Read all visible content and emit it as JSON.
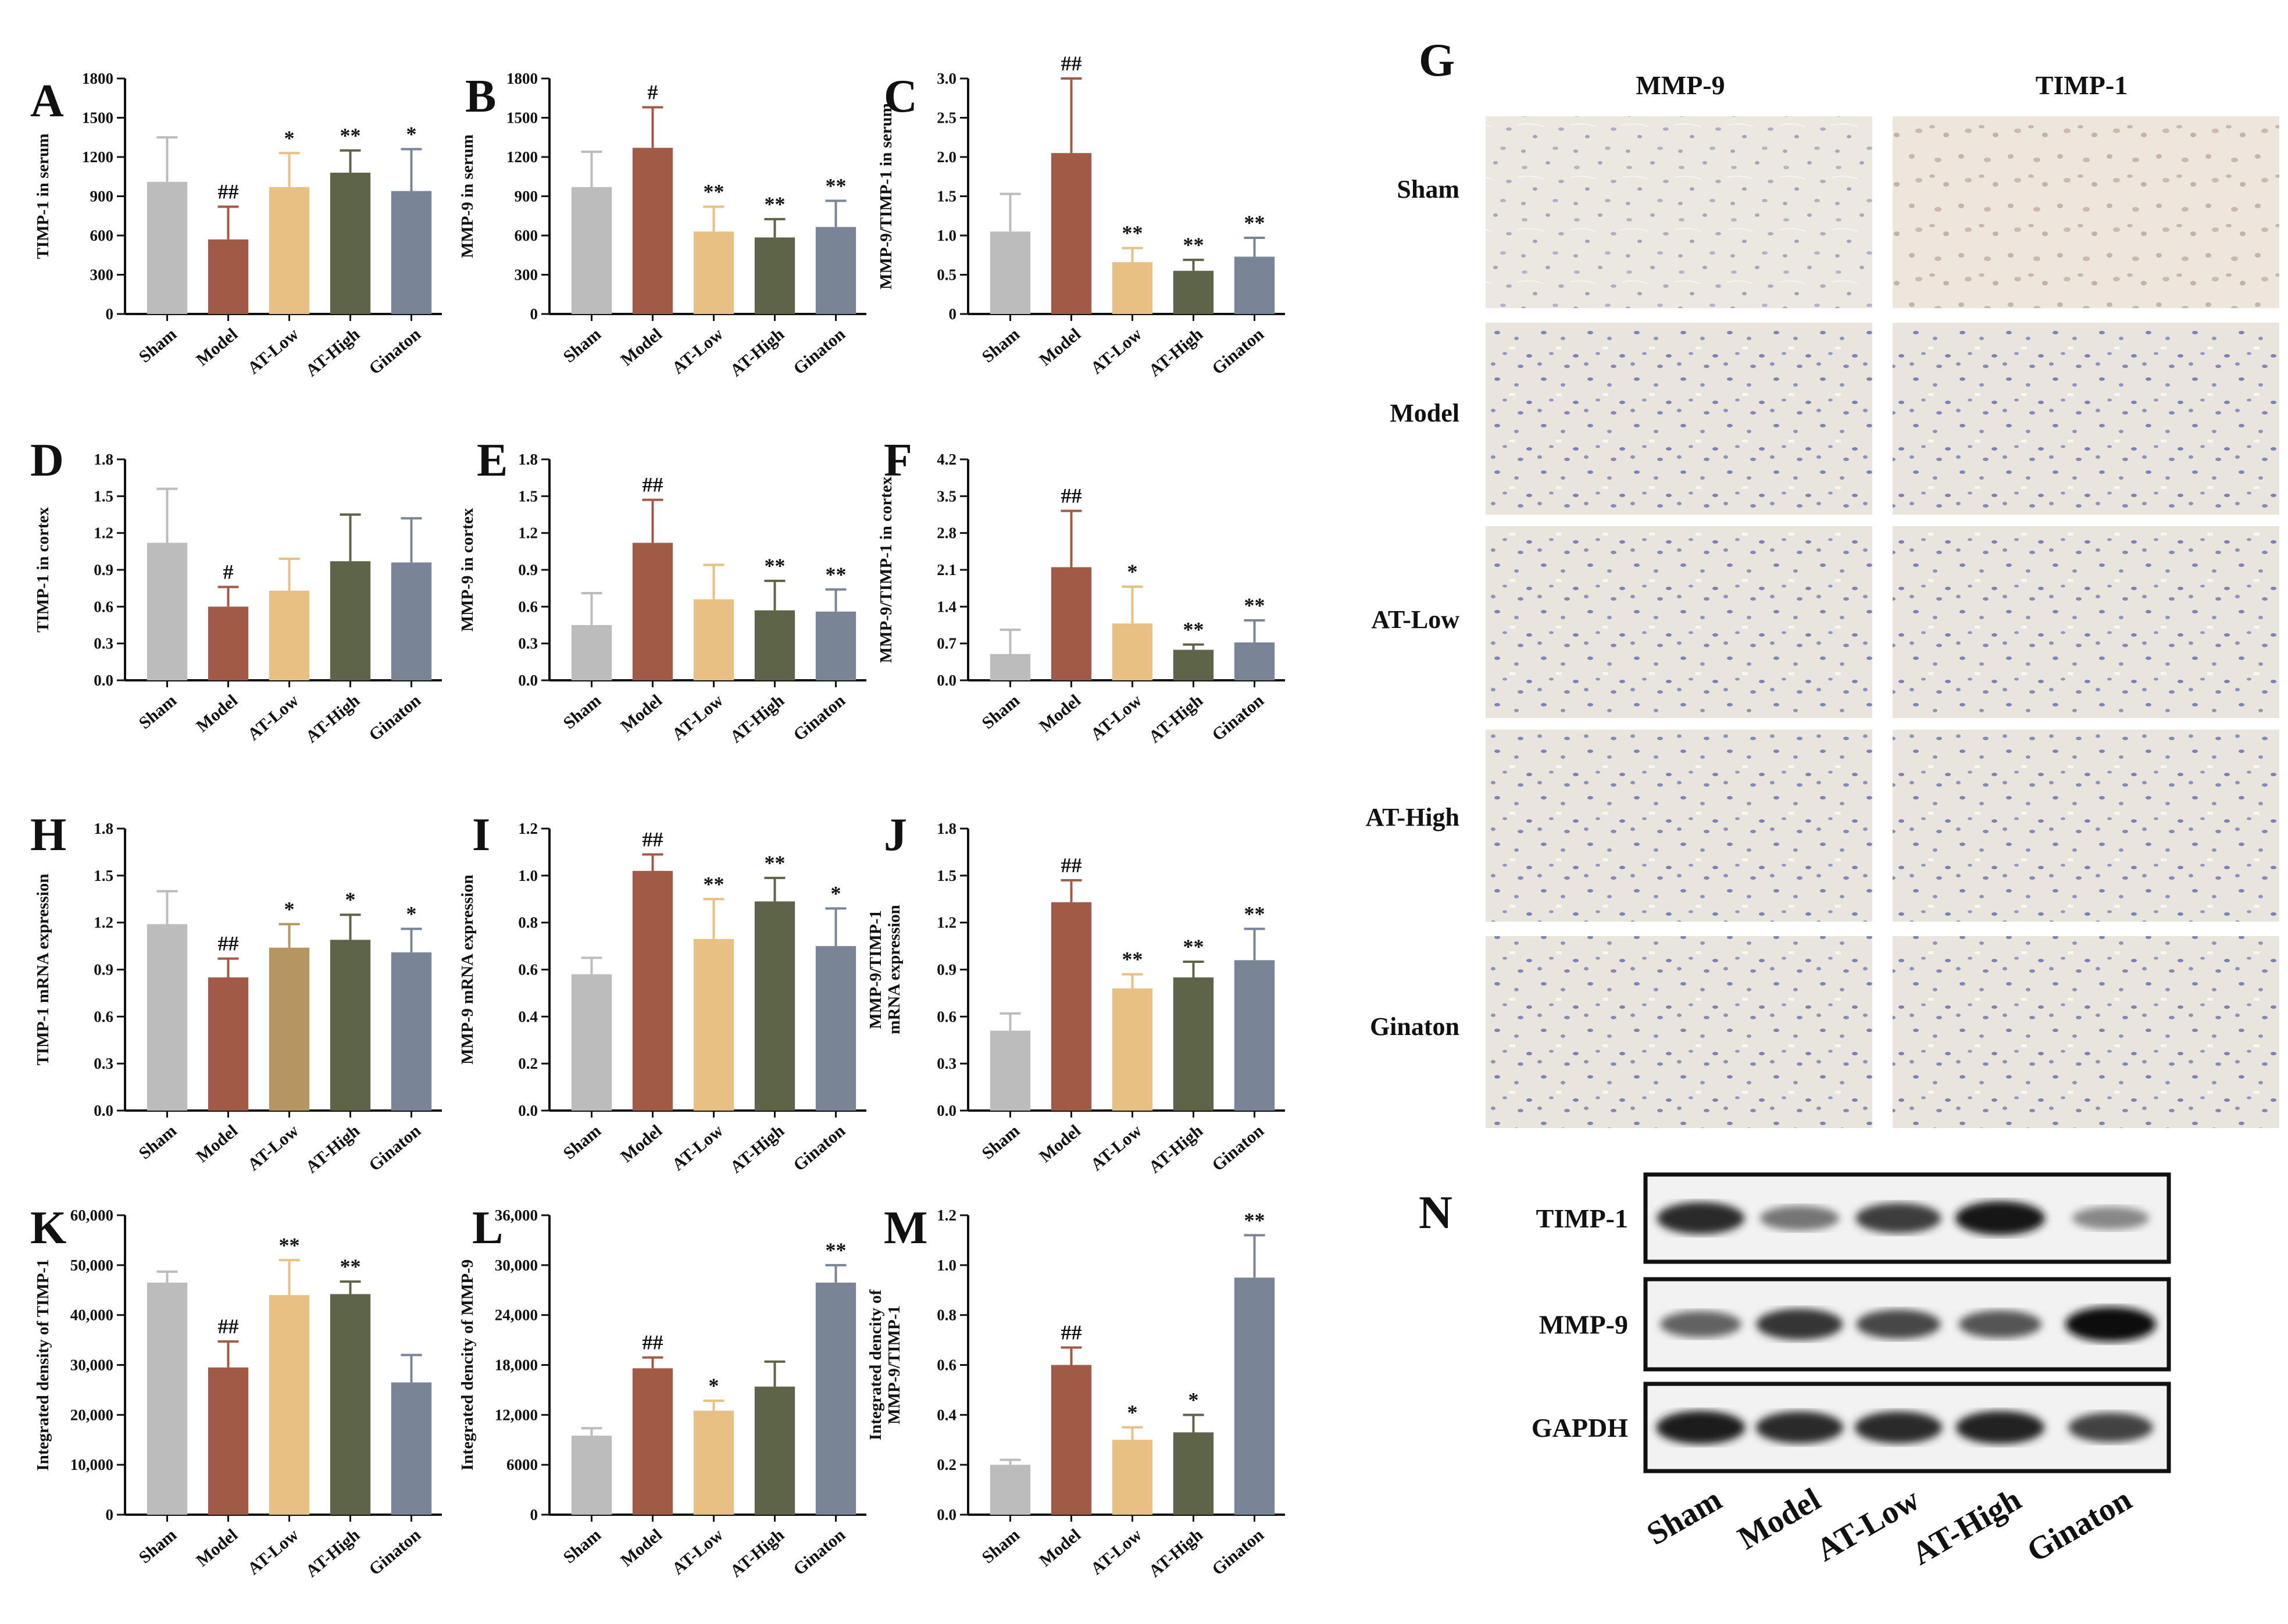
{
  "colors": {
    "Sham": "#bcbcbc",
    "Model": "#a05a45",
    "AT-Low": "#e8c083",
    "AT-High": "#5d6447",
    "Ginaton": "#798597",
    "AT-Low-H": "#b59660"
  },
  "categories": [
    "Sham",
    "Model",
    "AT-Low",
    "AT-High",
    "Ginaton"
  ],
  "chart_data": [
    {
      "id": "A",
      "type": "bar",
      "ylabel": "TIMP-1 in serum",
      "ylim": [
        0,
        1800
      ],
      "yticks": [
        "0",
        "300",
        "600",
        "900",
        "1200",
        "1500",
        "1800"
      ],
      "categories": [
        "Sham",
        "Model",
        "AT-Low",
        "AT-High",
        "Ginaton"
      ],
      "values": [
        1010,
        570,
        970,
        1080,
        940
      ],
      "errors": [
        340,
        250,
        260,
        170,
        320
      ],
      "sig": [
        "",
        "##",
        "*",
        "**",
        "*"
      ]
    },
    {
      "id": "B",
      "type": "bar",
      "ylabel": "MMP-9 in serum",
      "ylim": [
        0,
        1800
      ],
      "yticks": [
        "0",
        "300",
        "600",
        "900",
        "1200",
        "1500",
        "1800"
      ],
      "categories": [
        "Sham",
        "Model",
        "AT-Low",
        "AT-High",
        "Ginaton"
      ],
      "values": [
        970,
        1270,
        630,
        585,
        665
      ],
      "errors": [
        270,
        310,
        190,
        140,
        200
      ],
      "sig": [
        "",
        "#",
        "**",
        "**",
        "**"
      ]
    },
    {
      "id": "C",
      "type": "bar",
      "ylabel": "MMP-9/TIMP-1 in serum",
      "ylim": [
        0,
        3.0
      ],
      "yticks": [
        "0",
        "0.5",
        "1.0",
        "1.5",
        "2.0",
        "2.5",
        "3.0"
      ],
      "categories": [
        "Sham",
        "Model",
        "AT-Low",
        "AT-High",
        "Ginaton"
      ],
      "values": [
        1.05,
        2.05,
        0.66,
        0.55,
        0.73
      ],
      "errors": [
        0.48,
        0.95,
        0.18,
        0.14,
        0.24
      ],
      "sig": [
        "",
        "##",
        "**",
        "**",
        "**"
      ]
    },
    {
      "id": "D",
      "type": "bar",
      "ylabel": "TIMP-1 in cortex",
      "ylim": [
        0,
        1.8
      ],
      "yticks": [
        "0.0",
        "0.3",
        "0.6",
        "0.9",
        "1.2",
        "1.5",
        "1.8"
      ],
      "categories": [
        "Sham",
        "Model",
        "AT-Low",
        "AT-High",
        "Ginaton"
      ],
      "values": [
        1.12,
        0.6,
        0.73,
        0.97,
        0.96
      ],
      "errors": [
        0.44,
        0.16,
        0.26,
        0.38,
        0.36
      ],
      "sig": [
        "",
        "#",
        "",
        "",
        ""
      ]
    },
    {
      "id": "E",
      "type": "bar",
      "ylabel": "MMP-9 in cortex",
      "ylim": [
        0,
        1.8
      ],
      "yticks": [
        "0.0",
        "0.3",
        "0.6",
        "0.9",
        "1.2",
        "1.5",
        "1.8"
      ],
      "categories": [
        "Sham",
        "Model",
        "AT-Low",
        "AT-High",
        "Ginaton"
      ],
      "values": [
        0.45,
        1.12,
        0.66,
        0.57,
        0.56
      ],
      "errors": [
        0.26,
        0.35,
        0.28,
        0.24,
        0.18
      ],
      "sig": [
        "",
        "##",
        "",
        "**",
        "**"
      ]
    },
    {
      "id": "F",
      "type": "bar",
      "ylabel": "MMP-9/TIMP-1 in cortex",
      "ylim": [
        0,
        4.2
      ],
      "yticks": [
        "0.0",
        "0.7",
        "1.4",
        "2.1",
        "2.8",
        "3.5",
        "4.2"
      ],
      "categories": [
        "Sham",
        "Model",
        "AT-Low",
        "AT-High",
        "Ginaton"
      ],
      "values": [
        0.5,
        2.15,
        1.08,
        0.58,
        0.72
      ],
      "errors": [
        0.46,
        1.07,
        0.7,
        0.1,
        0.42
      ],
      "sig": [
        "",
        "##",
        "*",
        "**",
        "**"
      ]
    },
    {
      "id": "H",
      "type": "bar",
      "ylabel": "TIMP-1 mRNA expression",
      "ylim": [
        0,
        1.8
      ],
      "yticks": [
        "0.0",
        "0.3",
        "0.6",
        "0.9",
        "1.2",
        "1.5",
        "1.8"
      ],
      "categories": [
        "Sham",
        "Model",
        "AT-Low",
        "AT-High",
        "Ginaton"
      ],
      "values": [
        1.19,
        0.85,
        1.04,
        1.09,
        1.01
      ],
      "errors": [
        0.21,
        0.12,
        0.15,
        0.16,
        0.15
      ],
      "sig": [
        "",
        "##",
        "*",
        "*",
        "*"
      ]
    },
    {
      "id": "I",
      "type": "bar",
      "ylabel": "MMP-9 mRNA expression",
      "ylim": [
        0,
        1.2
      ],
      "yticks": [
        "0.0",
        "0.2",
        "0.4",
        "0.6",
        "0.8",
        "1.0",
        "1.2"
      ],
      "categories": [
        "Sham",
        "Model",
        "AT-Low",
        "AT-High",
        "Ginaton"
      ],
      "values": [
        0.58,
        1.02,
        0.73,
        0.89,
        0.7
      ],
      "errors": [
        0.07,
        0.07,
        0.17,
        0.1,
        0.16
      ],
      "sig": [
        "",
        "##",
        "**",
        "**",
        "*"
      ]
    },
    {
      "id": "J",
      "type": "bar",
      "ylabel": "MMP-9/TIMP-1",
      "ylabel2": "mRNA expression",
      "ylim": [
        0,
        1.8
      ],
      "yticks": [
        "0.0",
        "0.3",
        "0.6",
        "0.9",
        "1.2",
        "1.5",
        "1.8"
      ],
      "categories": [
        "Sham",
        "Model",
        "AT-Low",
        "AT-High",
        "Ginaton"
      ],
      "values": [
        0.51,
        1.33,
        0.78,
        0.85,
        0.96
      ],
      "errors": [
        0.11,
        0.14,
        0.09,
        0.1,
        0.2
      ],
      "sig": [
        "",
        "##",
        "**",
        "**",
        "**"
      ]
    },
    {
      "id": "K",
      "type": "bar",
      "ylabel": "Integrated density of TIMP-1",
      "ylim": [
        0,
        60000
      ],
      "yticks": [
        "0",
        "10,000",
        "20,000",
        "30,000",
        "40,000",
        "50,000",
        "60,000"
      ],
      "categories": [
        "Sham",
        "Model",
        "AT-Low",
        "AT-High",
        "Ginaton"
      ],
      "values": [
        46500,
        29500,
        44000,
        44200,
        26500
      ],
      "errors": [
        2200,
        5200,
        7000,
        2500,
        5500
      ],
      "sig": [
        "",
        "##",
        "**",
        "**",
        ""
      ]
    },
    {
      "id": "L",
      "type": "bar",
      "ylabel": "Integrated dencity of MMP-9",
      "ylim": [
        0,
        36000
      ],
      "yticks": [
        "0",
        "6000",
        "12,000",
        "18,000",
        "24,000",
        "30,000",
        "36,000"
      ],
      "categories": [
        "Sham",
        "Model",
        "AT-Low",
        "AT-High",
        "Ginaton"
      ],
      "values": [
        9500,
        17600,
        12500,
        15400,
        27900
      ],
      "errors": [
        900,
        1300,
        1200,
        3000,
        2100
      ],
      "sig": [
        "",
        "##",
        "*",
        "",
        "**"
      ]
    },
    {
      "id": "M",
      "type": "bar",
      "ylabel": "Integrated dencity of",
      "ylabel2": "MMP-9/TIMP-1",
      "ylim": [
        0,
        1.2
      ],
      "yticks": [
        "0.0",
        "0.2",
        "0.4",
        "0.6",
        "0.8",
        "1.0",
        "1.2"
      ],
      "categories": [
        "Sham",
        "Model",
        "AT-Low",
        "AT-High",
        "Ginaton"
      ],
      "values": [
        0.2,
        0.6,
        0.3,
        0.33,
        0.95
      ],
      "errors": [
        0.02,
        0.07,
        0.05,
        0.07,
        0.17
      ],
      "sig": [
        "",
        "##",
        "*",
        "*",
        "**"
      ]
    }
  ],
  "ihc": {
    "letter": "G",
    "columns": [
      "MMP-9",
      "TIMP-1"
    ],
    "rows": [
      "Sham",
      "Model",
      "AT-Low",
      "AT-High",
      "Ginaton"
    ]
  },
  "blot": {
    "letter": "N",
    "rows": [
      "TIMP-1",
      "MMP-9",
      "GAPDH"
    ],
    "lanes": [
      "Sham",
      "Model",
      "AT-Low",
      "AT-High",
      "Ginaton"
    ],
    "intensity": [
      [
        0.85,
        0.45,
        0.75,
        0.95,
        0.35
      ],
      [
        0.55,
        0.8,
        0.7,
        0.62,
        1.0
      ],
      [
        0.92,
        0.85,
        0.85,
        0.9,
        0.72
      ]
    ]
  }
}
